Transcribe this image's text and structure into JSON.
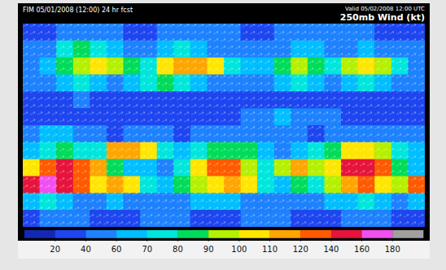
{
  "chart_data": {
    "type": "heatmap",
    "title": "250mb Wind (kt)",
    "subtitle": "FIM 05/01/2008 (12:00) 24 hr fcst",
    "annotations": [
      "Valid 05/02/2008 12:00 UTC"
    ],
    "tick_labels": false,
    "cells": [
      [
        30,
        35,
        40,
        45,
        50,
        40,
        35,
        30,
        40,
        45,
        50,
        45,
        40,
        35,
        30,
        40,
        45,
        50,
        55,
        45,
        40,
        35,
        30,
        30
      ],
      [
        45,
        55,
        70,
        80,
        75,
        60,
        50,
        55,
        65,
        70,
        60,
        55,
        50,
        45,
        40,
        55,
        60,
        65,
        55,
        50,
        60,
        55,
        45,
        40
      ],
      [
        50,
        60,
        80,
        90,
        100,
        95,
        80,
        70,
        100,
        110,
        115,
        100,
        70,
        60,
        60,
        80,
        90,
        85,
        70,
        90,
        100,
        95,
        70,
        50
      ],
      [
        45,
        50,
        60,
        70,
        65,
        55,
        60,
        75,
        80,
        70,
        60,
        55,
        50,
        45,
        50,
        60,
        70,
        65,
        55,
        60,
        70,
        65,
        55,
        45
      ],
      [
        25,
        30,
        35,
        40,
        35,
        30,
        25,
        30,
        35,
        30,
        25,
        30,
        35,
        30,
        25,
        30,
        35,
        30,
        25,
        30,
        35,
        30,
        25,
        25
      ],
      [
        20,
        25,
        30,
        30,
        25,
        20,
        25,
        30,
        25,
        20,
        25,
        30,
        35,
        50,
        55,
        60,
        55,
        50,
        40,
        30,
        25,
        20,
        25,
        20
      ],
      [
        55,
        60,
        60,
        50,
        40,
        35,
        40,
        45,
        40,
        35,
        40,
        45,
        40,
        45,
        50,
        45,
        40,
        35,
        40,
        45,
        50,
        45,
        40,
        50
      ],
      [
        60,
        70,
        80,
        75,
        70,
        110,
        110,
        100,
        70,
        60,
        70,
        80,
        85,
        80,
        60,
        55,
        60,
        70,
        80,
        100,
        105,
        95,
        70,
        60
      ],
      [
        100,
        120,
        140,
        130,
        110,
        80,
        60,
        60,
        50,
        70,
        100,
        120,
        130,
        90,
        70,
        90,
        110,
        90,
        100,
        140,
        150,
        120,
        80,
        60
      ],
      [
        150,
        160,
        140,
        120,
        100,
        110,
        100,
        70,
        60,
        80,
        90,
        100,
        110,
        100,
        70,
        60,
        80,
        70,
        90,
        110,
        120,
        100,
        90,
        120
      ],
      [
        60,
        70,
        65,
        55,
        50,
        60,
        55,
        50,
        45,
        50,
        60,
        65,
        60,
        55,
        50,
        45,
        50,
        55,
        60,
        65,
        70,
        60,
        55,
        60
      ],
      [
        35,
        40,
        45,
        40,
        35,
        30,
        35,
        40,
        45,
        40,
        35,
        30,
        35,
        40,
        45,
        40,
        35,
        30,
        35,
        40,
        45,
        40,
        35,
        35
      ]
    ],
    "colorbar": {
      "range": [
        0,
        200
      ],
      "ticks": [
        20,
        40,
        60,
        70,
        80,
        90,
        100,
        110,
        120,
        140,
        160,
        180
      ],
      "colors": [
        "#1428b4",
        "#1e46f0",
        "#1e82ff",
        "#00beff",
        "#00e6dc",
        "#00dc5a",
        "#b4f000",
        "#ffe600",
        "#ffa500",
        "#ff5a00",
        "#e6143c",
        "#f050f0",
        "#a0a0a0"
      ]
    }
  }
}
